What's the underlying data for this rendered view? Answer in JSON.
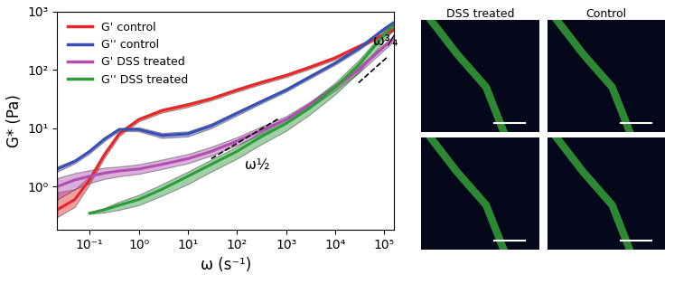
{
  "chart_data": {
    "type": "line",
    "log": true,
    "grid": false,
    "legend": "upper left",
    "xlabel": "ω (s⁻¹)",
    "ylabel": "G* (Pa)",
    "xlim": [
      0.022,
      160000
    ],
    "ylim": [
      0.18,
      1000
    ],
    "xticks": [
      {
        "value": 0.1,
        "label": "10⁻¹"
      },
      {
        "value": 1,
        "label": "10⁰"
      },
      {
        "value": 10,
        "label": "10¹"
      },
      {
        "value": 100,
        "label": "10²"
      },
      {
        "value": 1000,
        "label": "10³"
      },
      {
        "value": 10000,
        "label": "10⁴"
      },
      {
        "value": 100000,
        "label": "10⁵"
      }
    ],
    "yticks": [
      {
        "value": 1,
        "label": "10⁰"
      },
      {
        "value": 10,
        "label": "10¹"
      },
      {
        "value": 100,
        "label": "10²"
      },
      {
        "value": 1000,
        "label": "10³"
      }
    ],
    "x": [
      0.022,
      0.05,
      0.1,
      0.2,
      0.4,
      1,
      3,
      10,
      30,
      100,
      300,
      1000,
      3000,
      10000,
      30000,
      100000,
      160000
    ],
    "series": [
      {
        "name": "G' control",
        "color": "#e8262a",
        "values": [
          0.4,
          0.6,
          1.3,
          3.5,
          8,
          14,
          20,
          25,
          32,
          45,
          60,
          80,
          110,
          160,
          250,
          400,
          500
        ],
        "lower": [
          0.3,
          0.45,
          1.1,
          3.1,
          7.3,
          13,
          18.5,
          23,
          30,
          42,
          56,
          75,
          103,
          150,
          235,
          375,
          470
        ],
        "upper": [
          0.8,
          0.9,
          1.5,
          3.9,
          8.7,
          15,
          21.5,
          27,
          34,
          48,
          64,
          85,
          117,
          170,
          265,
          425,
          530
        ]
      },
      {
        "name": "G'' control",
        "color": "#3a4fb5",
        "values": [
          2,
          2.7,
          4,
          6.5,
          9.5,
          9.5,
          7.5,
          8,
          11,
          18,
          28,
          45,
          75,
          130,
          230,
          500,
          650
        ],
        "lower": [
          1.8,
          2.5,
          3.7,
          6,
          9,
          8.8,
          6.8,
          7.2,
          10,
          16.5,
          26,
          42,
          70,
          122,
          215,
          470,
          610
        ],
        "upper": [
          2.2,
          2.9,
          4.3,
          7,
          10,
          10.3,
          8.3,
          8.8,
          12,
          19.5,
          30,
          48,
          80,
          138,
          245,
          530,
          690
        ]
      },
      {
        "name": "G' DSS treated",
        "color": "#b04fb0",
        "values": [
          1.0,
          1.3,
          1.5,
          1.7,
          1.85,
          2.0,
          2.4,
          3,
          4,
          6,
          9,
          14,
          25,
          50,
          100,
          250,
          350
        ],
        "lower": [
          0.6,
          0.9,
          1.15,
          1.35,
          1.5,
          1.65,
          2,
          2.5,
          3.4,
          5.1,
          7.8,
          12,
          22,
          44,
          88,
          220,
          310
        ],
        "upper": [
          1.4,
          1.7,
          1.9,
          2.1,
          2.2,
          2.4,
          2.9,
          3.6,
          4.8,
          7,
          10.5,
          16,
          28,
          56,
          112,
          280,
          390
        ]
      },
      {
        "name": "G'' DSS treated",
        "color": "#2e9a3a",
        "values": [
          null,
          null,
          0.35,
          0.4,
          0.48,
          0.6,
          0.9,
          1.5,
          2.4,
          4,
          7,
          12,
          22,
          50,
          120,
          400,
          600
        ],
        "lower": [
          null,
          null,
          0.34,
          0.36,
          0.4,
          0.48,
          0.7,
          1.1,
          1.8,
          3,
          5.2,
          9,
          17,
          38,
          90,
          320,
          500
        ],
        "upper": [
          null,
          null,
          0.36,
          0.43,
          0.55,
          0.72,
          1.1,
          1.8,
          2.9,
          4.8,
          8.5,
          14.5,
          27,
          60,
          145,
          460,
          700
        ]
      }
    ],
    "annotations": [
      {
        "text": "ω½",
        "x": [
          30,
          700
        ],
        "y": [
          3,
          14.5
        ]
      },
      {
        "text": "ω¾",
        "x": [
          30000,
          120000
        ],
        "y": [
          60,
          170
        ]
      }
    ]
  },
  "panels": [
    {
      "title": "DSS treated"
    },
    {
      "title": "Control"
    }
  ]
}
